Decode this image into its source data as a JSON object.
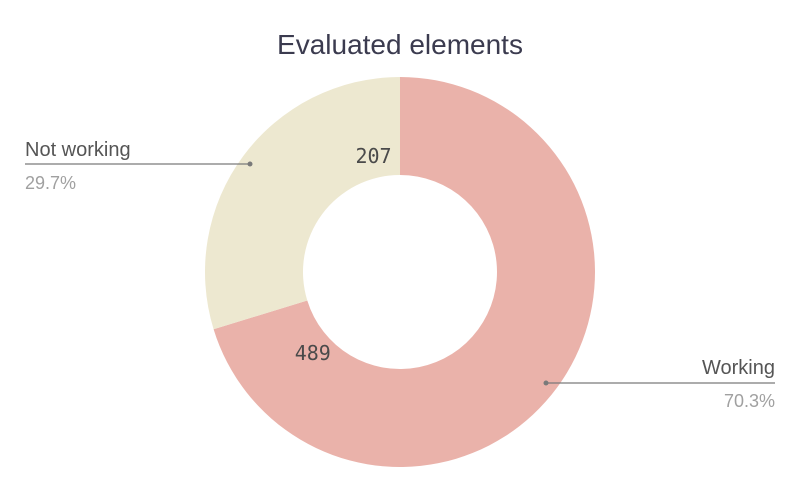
{
  "chart_data": {
    "type": "pie",
    "title": "Evaluated elements",
    "donut": true,
    "slices": [
      {
        "label": "Working",
        "value": 489,
        "percent": "70.3%",
        "color": "#eab2aa"
      },
      {
        "label": "Not working",
        "value": 207,
        "percent": "29.7%",
        "color": "#ede8d0"
      }
    ],
    "start": "12 o'clock",
    "direction": "clockwise"
  }
}
